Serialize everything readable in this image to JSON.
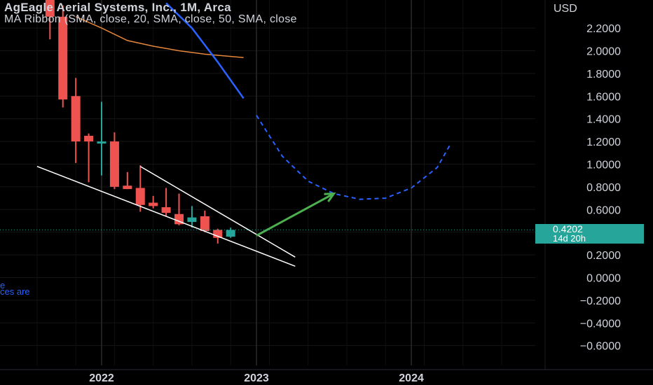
{
  "legend": {
    "title": "AgEagle Aerial Systems, Inc., 1M, Arca",
    "indicator": "MA Ribbon (SMA, close, 20, SMA, close, 50, SMA, close"
  },
  "side_notes": [
    "e",
    "ces are"
  ],
  "price_badge": {
    "price": "0.4202",
    "countdown": "14d 20h",
    "color": "#26a69a"
  },
  "colors": {
    "background": "#000000",
    "up": "#26a69a",
    "down": "#ef5350",
    "sma_orange": "#e8873a",
    "sma_blue": "#2962ff",
    "projection": "#2962ff",
    "wedge": "#ffffff",
    "arrow": "#4caf50",
    "text": "#d1d4dc"
  },
  "chart_data": {
    "type": "candlestick",
    "currency_label": "USD",
    "y_axis": {
      "ticks": [
        "2.2000",
        "2.0000",
        "1.8000",
        "1.6000",
        "1.4000",
        "1.2000",
        "1.0000",
        "0.8000",
        "0.6000",
        "0.4000",
        "0.2000",
        "0.0000",
        "−0.2000",
        "−0.4000",
        "−0.6000"
      ],
      "range": [
        -0.7,
        2.35
      ]
    },
    "x_axis": {
      "ticks": [
        "2022",
        "2023",
        "2024"
      ],
      "range": [
        "2021-08",
        "2024-09"
      ]
    },
    "candles": [
      {
        "t": "2021-09",
        "o": 2.5,
        "h": 2.6,
        "l": 2.1,
        "c": 2.3
      },
      {
        "t": "2021-10",
        "o": 2.3,
        "h": 2.4,
        "l": 1.5,
        "c": 1.57
      },
      {
        "t": "2021-11",
        "o": 1.6,
        "h": 1.76,
        "l": 1.01,
        "c": 1.2
      },
      {
        "t": "2021-12",
        "o": 1.25,
        "h": 1.27,
        "l": 0.84,
        "c": 1.2
      },
      {
        "t": "2022-01",
        "o": 1.2,
        "h": 1.55,
        "l": 0.9,
        "c": 1.2
      },
      {
        "t": "2022-02",
        "o": 1.2,
        "h": 1.28,
        "l": 0.78,
        "c": 0.8
      },
      {
        "t": "2022-03",
        "o": 0.81,
        "h": 0.93,
        "l": 0.78,
        "c": 0.78
      },
      {
        "t": "2022-04",
        "o": 0.79,
        "h": 0.99,
        "l": 0.58,
        "c": 0.64
      },
      {
        "t": "2022-05",
        "o": 0.66,
        "h": 0.72,
        "l": 0.61,
        "c": 0.63
      },
      {
        "t": "2022-06",
        "o": 0.62,
        "h": 0.79,
        "l": 0.54,
        "c": 0.57
      },
      {
        "t": "2022-07",
        "o": 0.56,
        "h": 0.74,
        "l": 0.46,
        "c": 0.47
      },
      {
        "t": "2022-08",
        "o": 0.49,
        "h": 0.63,
        "l": 0.44,
        "c": 0.53
      },
      {
        "t": "2022-09",
        "o": 0.54,
        "h": 0.59,
        "l": 0.4,
        "c": 0.41
      },
      {
        "t": "2022-10",
        "o": 0.42,
        "h": 0.43,
        "l": 0.3,
        "c": 0.35
      },
      {
        "t": "2022-11",
        "o": 0.36,
        "h": 0.44,
        "l": 0.35,
        "c": 0.42
      }
    ],
    "sma_orange": [
      {
        "t": "2021-11",
        "v": 2.3
      },
      {
        "t": "2022-01",
        "v": 2.2
      },
      {
        "t": "2022-03",
        "v": 2.09
      },
      {
        "t": "2022-05",
        "v": 2.04
      },
      {
        "t": "2022-07",
        "v": 2.0
      },
      {
        "t": "2022-09",
        "v": 1.97
      },
      {
        "t": "2022-11",
        "v": 1.95
      },
      {
        "t": "2022-12",
        "v": 1.94
      }
    ],
    "sma_blue": [
      {
        "t": "2022-06",
        "v": 2.42
      },
      {
        "t": "2022-08",
        "v": 2.2
      },
      {
        "t": "2022-10",
        "v": 1.9
      },
      {
        "t": "2022-12",
        "v": 1.58
      }
    ],
    "projection_curve": [
      {
        "t": "2023-01",
        "v": 1.43
      },
      {
        "t": "2023-03",
        "v": 1.07
      },
      {
        "t": "2023-05",
        "v": 0.85
      },
      {
        "t": "2023-07",
        "v": 0.74
      },
      {
        "t": "2023-09",
        "v": 0.69
      },
      {
        "t": "2023-11",
        "v": 0.7
      },
      {
        "t": "2024-01",
        "v": 0.79
      },
      {
        "t": "2024-03",
        "v": 0.97
      },
      {
        "t": "2024-04",
        "v": 1.17
      }
    ],
    "wedge_lines": [
      {
        "from": {
          "t": "2021-08",
          "v": 0.98
        },
        "to": {
          "t": "2023-04",
          "v": 0.1
        }
      },
      {
        "from": {
          "t": "2022-04",
          "v": 0.98
        },
        "to": {
          "t": "2023-04",
          "v": 0.18
        }
      }
    ],
    "arrow": {
      "from": {
        "t": "2023-01",
        "v": 0.37
      },
      "to": {
        "t": "2023-07",
        "v": 0.74
      }
    },
    "last_price": 0.4202,
    "grid": true
  }
}
